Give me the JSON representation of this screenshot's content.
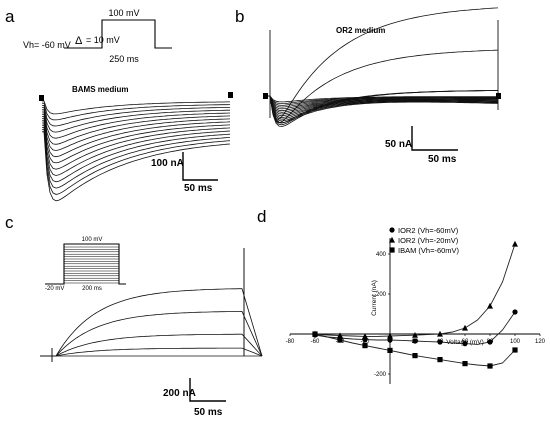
{
  "panels": {
    "a": {
      "letter": "a",
      "protocol": {
        "step_label": "100 mV",
        "hold_label": "Vh= -60 mV",
        "delta_symbol": "Δ",
        "increment_label": "= 10 mV",
        "duration_label": "250 ms"
      },
      "medium_label": "BAMS medium",
      "scale": {
        "y_label": "100 nA",
        "x_label": "50 ms"
      }
    },
    "b": {
      "letter": "b",
      "medium_label": "OR2 medium",
      "scale": {
        "y_label": "50 nA",
        "x_label": "50 ms"
      }
    },
    "c": {
      "letter": "c",
      "protocol": {
        "step_label": "100 mV",
        "hold_label": "-20 mV",
        "duration_label": "200 ms"
      },
      "scale": {
        "y_label": "200 nA",
        "x_label": "50 ms"
      }
    },
    "d": {
      "letter": "d"
    }
  },
  "chart_data": {
    "type": "line",
    "xlabel": "Voltage (mV)",
    "ylabel": "Current (nA)",
    "xlim": [
      -80,
      120
    ],
    "ylim": [
      -250,
      480
    ],
    "x_ticks": [
      -80,
      -60,
      -40,
      -20,
      0,
      20,
      40,
      60,
      80,
      100,
      120
    ],
    "y_ticks": [
      -200,
      200,
      400
    ],
    "legend_position": "top-right",
    "series": [
      {
        "name": "IOR2 (Vh=-60mV)",
        "marker": "circle",
        "x": [
          -60,
          -50,
          -40,
          -30,
          -20,
          -10,
          0,
          10,
          20,
          30,
          40,
          50,
          60,
          70,
          80,
          90,
          100
        ],
        "y": [
          -5,
          -15,
          -20,
          -25,
          -28,
          -30,
          -30,
          -32,
          -35,
          -38,
          -40,
          -45,
          -48,
          -52,
          -40,
          20,
          110
        ]
      },
      {
        "name": "IOR2 (Vh=-20mV)",
        "marker": "triangle",
        "x": [
          -60,
          -50,
          -40,
          -30,
          -20,
          -10,
          0,
          10,
          20,
          30,
          40,
          50,
          60,
          70,
          80,
          90,
          100
        ],
        "y": [
          0,
          -5,
          -8,
          -10,
          -12,
          -12,
          -10,
          -8,
          -6,
          -3,
          0,
          10,
          30,
          70,
          140,
          260,
          450
        ]
      },
      {
        "name": "IBAM (Vh=-60mV)",
        "marker": "square",
        "x": [
          -60,
          -50,
          -40,
          -30,
          -20,
          -10,
          0,
          10,
          20,
          30,
          40,
          50,
          60,
          70,
          80,
          90,
          100
        ],
        "y": [
          0,
          -15,
          -30,
          -45,
          -58,
          -70,
          -82,
          -95,
          -108,
          -118,
          -128,
          -138,
          -148,
          -155,
          -160,
          -145,
          -80
        ]
      }
    ]
  }
}
